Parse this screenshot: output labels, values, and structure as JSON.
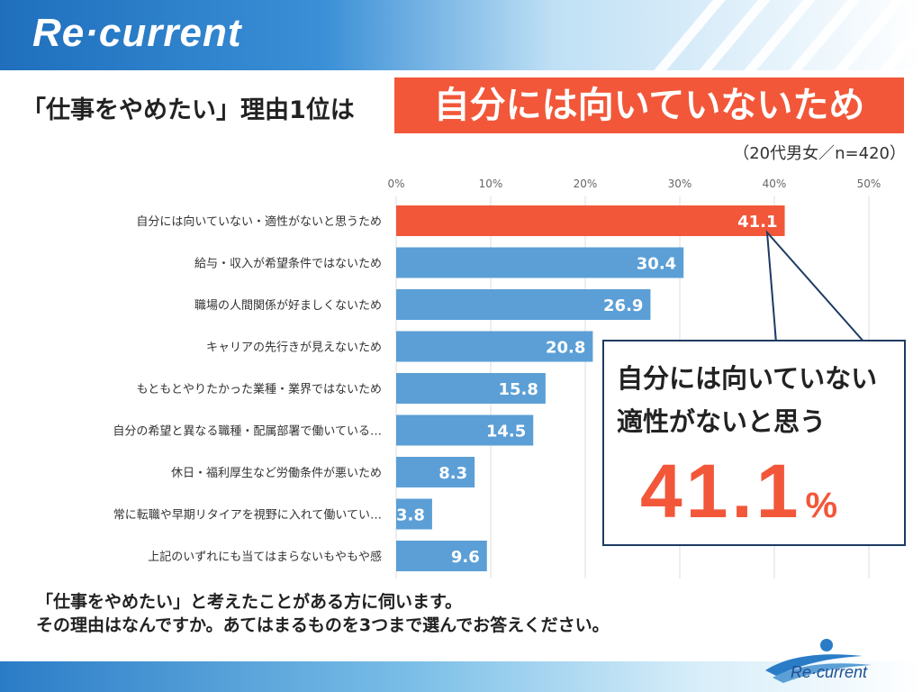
{
  "header": {
    "logo": "Re·current"
  },
  "title": {
    "prefix": "「仕事をやめたい」理由1位は",
    "highlight": "自分には向いていないため"
  },
  "sample_note": "（20代男女／n=420）",
  "chart_data": {
    "type": "bar",
    "orientation": "horizontal",
    "title": "「仕事をやめたい」理由1位は 自分には向いていないため",
    "xlabel": "",
    "ylabel": "",
    "xlim": [
      0,
      50
    ],
    "ticks": [
      "0%",
      "10%",
      "20%",
      "30%",
      "40%",
      "50%"
    ],
    "grid": true,
    "categories": [
      "自分には向いていない・適性がないと思うため",
      "給与・収入が希望条件ではないため",
      "職場の人間関係が好ましくないため",
      "キャリアの先行きが見えないため",
      "もともとやりたかった業種・業界ではないため",
      "自分の希望と異なる職種・配属部署で働いている…",
      "休日・福利厚生など労働条件が悪いため",
      "常に転職や早期リタイアを視野に入れて働いてい…",
      "上記のいずれにも当てはまらないもやもや感"
    ],
    "values": [
      41.1,
      30.4,
      26.9,
      20.8,
      15.8,
      14.5,
      8.3,
      3.8,
      9.6
    ],
    "value_labels": [
      "41.1",
      "30.4",
      "26.9",
      "20.8",
      "15.8",
      "14.5",
      "8.3",
      "3.8",
      "9.6"
    ],
    "colors": {
      "highlight": "#f2573a",
      "default": "#5b9fd6"
    }
  },
  "callout": {
    "line1": "自分には向いていない",
    "line2": "適性がないと思う",
    "value": "41.1",
    "unit": "%"
  },
  "question": {
    "line1": "「仕事をやめたい」と考えたことがある方に伺います。",
    "line2": "その理由はなんですか。あてはまるものを3つまで選んでお答えください。"
  },
  "footer": {
    "logo": "Re·current"
  }
}
